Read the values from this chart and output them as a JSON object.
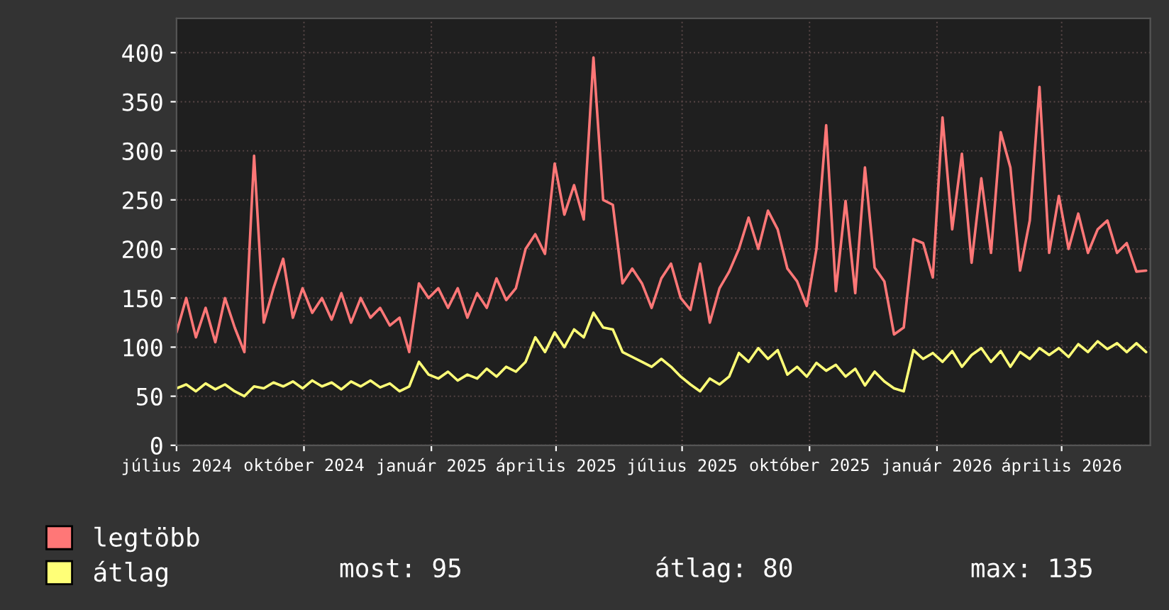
{
  "chart_data": {
    "type": "line",
    "x": [
      "2024-07-01",
      "2024-07-08",
      "2024-07-15",
      "2024-07-22",
      "2024-07-29",
      "2024-08-05",
      "2024-08-12",
      "2024-08-19",
      "2024-08-26",
      "2024-09-02",
      "2024-09-09",
      "2024-09-16",
      "2024-09-23",
      "2024-09-30",
      "2024-10-07",
      "2024-10-14",
      "2024-10-21",
      "2024-10-28",
      "2024-11-04",
      "2024-11-11",
      "2024-11-18",
      "2024-11-25",
      "2024-12-02",
      "2024-12-09",
      "2024-12-16",
      "2024-12-23",
      "2024-12-30",
      "2025-01-06",
      "2025-01-13",
      "2025-01-20",
      "2025-01-27",
      "2025-02-03",
      "2025-02-10",
      "2025-02-17",
      "2025-02-24",
      "2025-03-03",
      "2025-03-10",
      "2025-03-17",
      "2025-03-24",
      "2025-03-31",
      "2025-04-07",
      "2025-04-14",
      "2025-04-21",
      "2025-04-28",
      "2025-05-05",
      "2025-05-12",
      "2025-05-19",
      "2025-05-26",
      "2025-06-02",
      "2025-06-09",
      "2025-06-16",
      "2025-06-23",
      "2025-06-30",
      "2025-07-07",
      "2025-07-14",
      "2025-07-21",
      "2025-07-28",
      "2025-08-04",
      "2025-08-11",
      "2025-08-18",
      "2025-08-25",
      "2025-09-01",
      "2025-09-08",
      "2025-09-15",
      "2025-09-22",
      "2025-09-29",
      "2025-10-06",
      "2025-10-13",
      "2025-10-20",
      "2025-10-27",
      "2025-11-03",
      "2025-11-10",
      "2025-11-17",
      "2025-11-24",
      "2025-12-01",
      "2025-12-08",
      "2025-12-15",
      "2025-12-22",
      "2025-12-29",
      "2026-01-05",
      "2026-01-12",
      "2026-01-19",
      "2026-01-26",
      "2026-02-02",
      "2026-02-09",
      "2026-02-16",
      "2026-02-23",
      "2026-03-02",
      "2026-03-09",
      "2026-03-16",
      "2026-03-23",
      "2026-03-30",
      "2026-04-06",
      "2026-04-13",
      "2026-04-20",
      "2026-04-27",
      "2026-05-04",
      "2026-05-11",
      "2026-05-18",
      "2026-05-25",
      "2026-06-01"
    ],
    "series": [
      {
        "name": "legtöbb",
        "color": "#ff7777",
        "values": [
          115,
          150,
          110,
          140,
          105,
          150,
          120,
          95,
          295,
          125,
          160,
          190,
          130,
          160,
          135,
          150,
          128,
          155,
          125,
          150,
          130,
          140,
          122,
          130,
          95,
          165,
          150,
          160,
          140,
          160,
          130,
          155,
          140,
          170,
          148,
          160,
          200,
          215,
          195,
          287,
          235,
          265,
          230,
          395,
          250,
          245,
          165,
          180,
          165,
          140,
          170,
          185,
          150,
          138,
          185,
          125,
          160,
          177,
          200,
          232,
          200,
          239,
          220,
          180,
          167,
          142,
          200,
          326,
          157,
          249,
          155,
          283,
          181,
          167,
          113,
          120,
          210,
          206,
          171,
          334,
          220,
          297,
          186,
          272,
          196,
          319,
          283,
          178,
          229,
          365,
          196,
          254,
          200,
          236,
          196,
          220,
          229,
          196,
          206,
          177,
          178
        ]
      },
      {
        "name": "átlag",
        "color": "#ffff77",
        "values": [
          58,
          62,
          55,
          63,
          57,
          62,
          55,
          50,
          60,
          58,
          64,
          60,
          65,
          58,
          66,
          60,
          64,
          57,
          65,
          60,
          66,
          59,
          63,
          55,
          60,
          85,
          72,
          68,
          75,
          66,
          72,
          68,
          78,
          70,
          80,
          75,
          85,
          110,
          95,
          115,
          100,
          118,
          110,
          135,
          120,
          118,
          95,
          90,
          85,
          80,
          88,
          80,
          70,
          62,
          55,
          68,
          62,
          70,
          94,
          85,
          99,
          88,
          97,
          72,
          80,
          70,
          84,
          76,
          82,
          70,
          78,
          61,
          75,
          65,
          58,
          55,
          97,
          88,
          94,
          85,
          96,
          80,
          92,
          99,
          85,
          96,
          80,
          95,
          88,
          99,
          92,
          99,
          90,
          103,
          95,
          106,
          98,
          104,
          95,
          104,
          95
        ]
      }
    ],
    "xlim": [
      "2024-07-01",
      "2026-06-04"
    ],
    "xticks": [
      {
        "value": "2024-07-01",
        "label": "július 2024"
      },
      {
        "value": "2024-10-01",
        "label": "október 2024"
      },
      {
        "value": "2025-01-01",
        "label": "január 2025"
      },
      {
        "value": "2025-04-01",
        "label": "április 2025"
      },
      {
        "value": "2025-07-01",
        "label": "július 2025"
      },
      {
        "value": "2025-10-01",
        "label": "október 2025"
      },
      {
        "value": "2026-01-01",
        "label": "január 2026"
      },
      {
        "value": "2026-04-01",
        "label": "április 2026"
      }
    ],
    "ylim": [
      0,
      435
    ],
    "yticks": [
      0,
      50,
      100,
      150,
      200,
      250,
      300,
      350,
      400
    ],
    "grid": true,
    "legend": "bottom left",
    "annotations": [
      "most: 95",
      "átlag: 80",
      "max: 135"
    ]
  }
}
